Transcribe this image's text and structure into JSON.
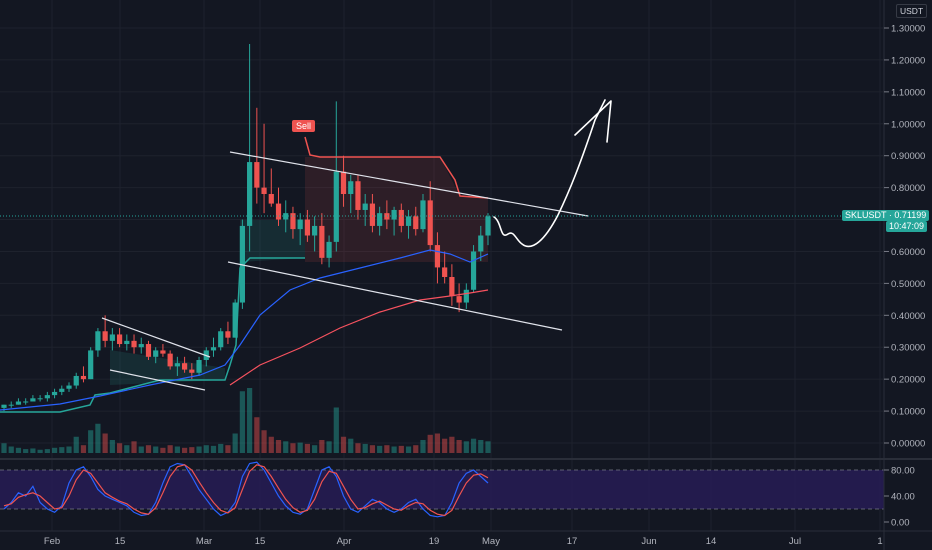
{
  "symbol": "SKLUSDT",
  "currency": "USDT",
  "last_price": "0.71199",
  "countdown": "10:47:09",
  "signal_label": "Sell",
  "price_axis": [
    "1.30000",
    "1.20000",
    "1.10000",
    "1.00000",
    "0.90000",
    "0.80000",
    "0.70000",
    "0.60000",
    "0.50000",
    "0.40000",
    "0.30000",
    "0.20000",
    "0.10000",
    "0.00000"
  ],
  "osc_axis": [
    "80.00",
    "40.00",
    "0.00"
  ],
  "time_axis": [
    "Feb",
    "15",
    "Mar",
    "15",
    "Apr",
    "19",
    "May",
    "17",
    "Jun",
    "14",
    "Jul",
    "1"
  ],
  "colors": {
    "up": "#26a69a",
    "down": "#ef5350",
    "bg": "#131722",
    "grid": "#1e222d",
    "ema_blue": "#2962ff",
    "ema_red": "#f7525f",
    "osc_fill": "#2a1d5c"
  },
  "chart_data": {
    "type": "candlestick",
    "y_range": [
      -0.02,
      1.36
    ],
    "candles": [
      [
        0.11,
        0.12,
        0.1,
        0.12
      ],
      [
        0.12,
        0.13,
        0.11,
        0.12
      ],
      [
        0.12,
        0.14,
        0.12,
        0.13
      ],
      [
        0.13,
        0.14,
        0.12,
        0.13
      ],
      [
        0.13,
        0.15,
        0.13,
        0.14
      ],
      [
        0.14,
        0.15,
        0.13,
        0.14
      ],
      [
        0.14,
        0.16,
        0.13,
        0.15
      ],
      [
        0.15,
        0.17,
        0.14,
        0.16
      ],
      [
        0.16,
        0.18,
        0.15,
        0.17
      ],
      [
        0.17,
        0.19,
        0.16,
        0.18
      ],
      [
        0.18,
        0.22,
        0.17,
        0.21
      ],
      [
        0.21,
        0.24,
        0.19,
        0.2
      ],
      [
        0.2,
        0.3,
        0.2,
        0.29
      ],
      [
        0.29,
        0.36,
        0.27,
        0.35
      ],
      [
        0.35,
        0.4,
        0.3,
        0.32
      ],
      [
        0.32,
        0.36,
        0.29,
        0.34
      ],
      [
        0.34,
        0.36,
        0.3,
        0.31
      ],
      [
        0.31,
        0.34,
        0.29,
        0.32
      ],
      [
        0.32,
        0.34,
        0.28,
        0.3
      ],
      [
        0.3,
        0.33,
        0.28,
        0.31
      ],
      [
        0.31,
        0.32,
        0.26,
        0.27
      ],
      [
        0.27,
        0.3,
        0.25,
        0.29
      ],
      [
        0.29,
        0.31,
        0.27,
        0.28
      ],
      [
        0.28,
        0.29,
        0.23,
        0.24
      ],
      [
        0.24,
        0.27,
        0.21,
        0.25
      ],
      [
        0.25,
        0.27,
        0.22,
        0.23
      ],
      [
        0.23,
        0.25,
        0.2,
        0.22
      ],
      [
        0.22,
        0.27,
        0.21,
        0.26
      ],
      [
        0.26,
        0.3,
        0.24,
        0.29
      ],
      [
        0.29,
        0.33,
        0.27,
        0.3
      ],
      [
        0.3,
        0.36,
        0.29,
        0.35
      ],
      [
        0.35,
        0.38,
        0.31,
        0.33
      ],
      [
        0.33,
        0.45,
        0.33,
        0.44
      ],
      [
        0.44,
        0.7,
        0.42,
        0.68
      ],
      [
        0.68,
        1.25,
        0.6,
        0.88
      ],
      [
        0.88,
        1.05,
        0.75,
        0.8
      ],
      [
        0.8,
        1.0,
        0.72,
        0.78
      ],
      [
        0.78,
        0.86,
        0.74,
        0.75
      ],
      [
        0.75,
        0.8,
        0.68,
        0.7
      ],
      [
        0.7,
        0.76,
        0.66,
        0.72
      ],
      [
        0.72,
        0.74,
        0.64,
        0.67
      ],
      [
        0.67,
        0.72,
        0.62,
        0.7
      ],
      [
        0.7,
        0.73,
        0.63,
        0.65
      ],
      [
        0.65,
        0.71,
        0.6,
        0.68
      ],
      [
        0.68,
        0.72,
        0.56,
        0.58
      ],
      [
        0.58,
        0.65,
        0.55,
        0.63
      ],
      [
        0.63,
        1.07,
        0.6,
        0.85
      ],
      [
        0.85,
        0.9,
        0.74,
        0.78
      ],
      [
        0.78,
        0.84,
        0.72,
        0.82
      ],
      [
        0.82,
        0.84,
        0.7,
        0.73
      ],
      [
        0.73,
        0.78,
        0.68,
        0.75
      ],
      [
        0.75,
        0.78,
        0.66,
        0.68
      ],
      [
        0.68,
        0.74,
        0.65,
        0.72
      ],
      [
        0.72,
        0.76,
        0.67,
        0.7
      ],
      [
        0.7,
        0.74,
        0.65,
        0.73
      ],
      [
        0.73,
        0.75,
        0.66,
        0.68
      ],
      [
        0.68,
        0.73,
        0.64,
        0.71
      ],
      [
        0.71,
        0.74,
        0.65,
        0.67
      ],
      [
        0.67,
        0.78,
        0.66,
        0.76
      ],
      [
        0.76,
        0.82,
        0.6,
        0.62
      ],
      [
        0.62,
        0.66,
        0.5,
        0.55
      ],
      [
        0.55,
        0.6,
        0.5,
        0.52
      ],
      [
        0.52,
        0.56,
        0.43,
        0.46
      ],
      [
        0.46,
        0.5,
        0.41,
        0.44
      ],
      [
        0.44,
        0.5,
        0.42,
        0.48
      ],
      [
        0.48,
        0.62,
        0.47,
        0.6
      ],
      [
        0.6,
        0.68,
        0.57,
        0.65
      ],
      [
        0.65,
        0.72,
        0.62,
        0.71
      ]
    ],
    "volumes": [
      0.15,
      0.1,
      0.08,
      0.06,
      0.07,
      0.05,
      0.06,
      0.08,
      0.09,
      0.1,
      0.25,
      0.12,
      0.35,
      0.45,
      0.3,
      0.2,
      0.15,
      0.12,
      0.18,
      0.1,
      0.12,
      0.1,
      0.08,
      0.12,
      0.1,
      0.08,
      0.09,
      0.1,
      0.12,
      0.11,
      0.14,
      0.12,
      0.3,
      0.95,
      1.0,
      0.55,
      0.35,
      0.25,
      0.2,
      0.18,
      0.15,
      0.16,
      0.14,
      0.12,
      0.2,
      0.18,
      0.7,
      0.25,
      0.22,
      0.15,
      0.14,
      0.12,
      0.11,
      0.12,
      0.1,
      0.11,
      0.1,
      0.12,
      0.2,
      0.28,
      0.3,
      0.22,
      0.25,
      0.2,
      0.18,
      0.22,
      0.2,
      0.18
    ],
    "stoch_k": [
      20,
      30,
      45,
      40,
      55,
      30,
      20,
      15,
      25,
      60,
      80,
      85,
      70,
      50,
      40,
      35,
      30,
      25,
      15,
      10,
      12,
      30,
      60,
      85,
      90,
      88,
      70,
      50,
      35,
      20,
      10,
      15,
      30,
      70,
      90,
      92,
      80,
      60,
      40,
      25,
      15,
      12,
      20,
      50,
      80,
      85,
      70,
      40,
      20,
      15,
      25,
      35,
      30,
      20,
      15,
      20,
      30,
      35,
      20,
      10,
      8,
      10,
      30,
      60,
      75,
      80,
      70,
      60
    ],
    "stoch_d": [
      25,
      28,
      38,
      42,
      45,
      40,
      30,
      20,
      22,
      40,
      65,
      80,
      75,
      60,
      45,
      38,
      32,
      28,
      20,
      14,
      12,
      22,
      45,
      70,
      85,
      88,
      80,
      62,
      45,
      30,
      18,
      14,
      22,
      50,
      78,
      88,
      85,
      70,
      52,
      35,
      22,
      15,
      18,
      35,
      62,
      78,
      75,
      55,
      35,
      20,
      22,
      28,
      32,
      26,
      20,
      18,
      25,
      30,
      28,
      18,
      12,
      10,
      18,
      40,
      60,
      72,
      74,
      68
    ]
  }
}
